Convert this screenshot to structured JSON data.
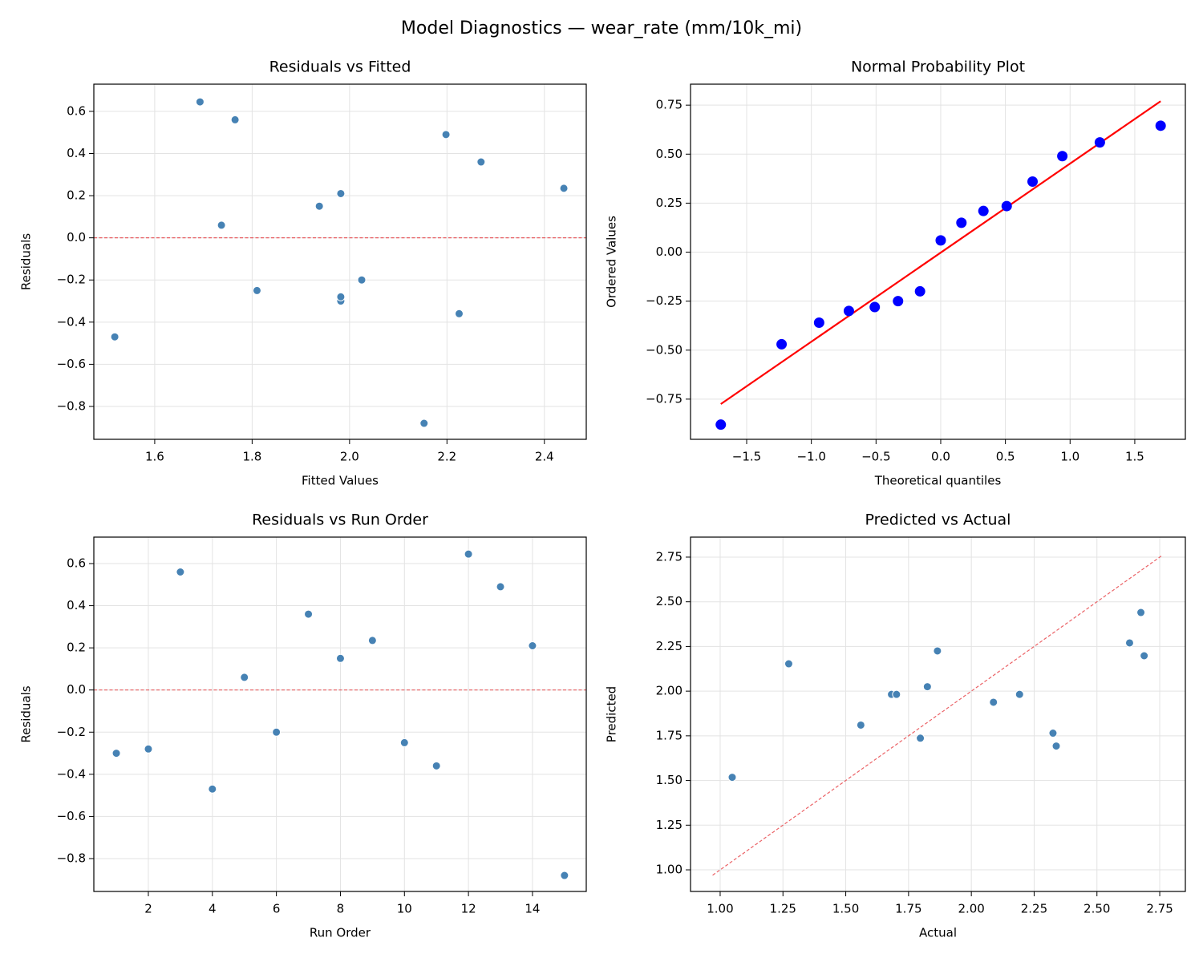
{
  "title": "Model Diagnostics — wear_rate (mm/10k_mi)",
  "chart_data": [
    {
      "type": "scatter",
      "title": "Residuals vs Fitted",
      "x_label": "Fitted Values",
      "y_label": "Residuals",
      "x": [
        1.982,
        1.982,
        1.765,
        1.518,
        1.737,
        2.025,
        2.27,
        1.938,
        2.44,
        1.81,
        2.225,
        1.693,
        2.198,
        1.982,
        2.153
      ],
      "values": [
        -0.3,
        -0.28,
        0.56,
        -0.47,
        0.06,
        -0.2,
        0.36,
        0.15,
        0.235,
        -0.25,
        -0.36,
        0.645,
        0.49,
        0.21,
        -0.88
      ],
      "color": "#4682b4",
      "grid": true,
      "hline": {
        "y": 0,
        "color": "#e8474b",
        "dashed": true
      },
      "xlim": [
        1.475,
        2.486
      ],
      "ylim": [
        -0.956,
        0.729
      ],
      "xticks": [
        1.6,
        1.8,
        {
          "value": 2,
          "label": "2.0"
        },
        2.2,
        2.4
      ],
      "yticks": [
        {
          "value": -0.8,
          "label": "−0.8"
        },
        {
          "value": -0.6,
          "label": "−0.6"
        },
        {
          "value": -0.4,
          "label": "−0.4"
        },
        {
          "value": -0.2,
          "label": "−0.2"
        },
        {
          "value": 0,
          "label": "0.0"
        },
        0.2,
        0.4,
        0.6
      ]
    },
    {
      "type": "scatter",
      "title": "Normal Probability Plot",
      "x_label": "Theoretical quantiles",
      "y_label": "Ordered Values",
      "x": [
        -1.7,
        -1.23,
        -0.94,
        -0.71,
        -0.51,
        -0.33,
        -0.16,
        0,
        0.16,
        0.33,
        0.51,
        0.71,
        0.94,
        1.23,
        1.7
      ],
      "values": [
        -0.88,
        -0.47,
        -0.36,
        -0.3,
        -0.28,
        -0.25,
        -0.2,
        0.06,
        0.15,
        0.21,
        0.235,
        0.36,
        0.49,
        0.56,
        0.645
      ],
      "color": "#0000ff",
      "grid": true,
      "line": {
        "x": [
          -1.7,
          1.7
        ],
        "values": [
          -0.775,
          0.77
        ],
        "color": "#ff0000",
        "dashed": false
      },
      "xlim": [
        -1.934,
        1.891
      ],
      "ylim": [
        -0.955,
        0.857
      ],
      "xticks": [
        {
          "value": -1.5,
          "label": "−1.5"
        },
        {
          "value": -1,
          "label": "−1.0"
        },
        {
          "value": -0.5,
          "label": "−0.5"
        },
        {
          "value": 0,
          "label": "0.0"
        },
        0.5,
        {
          "value": 1,
          "label": "1.0"
        },
        1.5
      ],
      "yticks": [
        {
          "value": -0.75,
          "label": "−0.75"
        },
        {
          "value": -0.5,
          "label": "−0.50"
        },
        {
          "value": -0.25,
          "label": "−0.25"
        },
        {
          "value": 0,
          "label": "0.00"
        },
        0.25,
        {
          "value": 0.5,
          "label": "0.50"
        },
        0.75
      ]
    },
    {
      "type": "scatter",
      "title": "Residuals vs Run Order",
      "x_label": "Run Order",
      "y_label": "Residuals",
      "x": [
        1,
        2,
        3,
        4,
        5,
        6,
        7,
        8,
        9,
        10,
        11,
        12,
        13,
        14,
        15
      ],
      "values": [
        -0.3,
        -0.28,
        0.56,
        -0.47,
        0.06,
        -0.2,
        0.36,
        0.15,
        0.235,
        -0.25,
        -0.36,
        0.645,
        0.49,
        0.21,
        -0.88
      ],
      "color": "#4682b4",
      "grid": true,
      "hline": {
        "y": 0,
        "color": "#e8474b",
        "dashed": true
      },
      "xlim": [
        0.297,
        15.68
      ],
      "ylim": [
        -0.956,
        0.7255
      ],
      "xticks": [
        2,
        4,
        6,
        8,
        10,
        12,
        14
      ],
      "yticks": [
        {
          "value": -0.8,
          "label": "−0.8"
        },
        {
          "value": -0.6,
          "label": "−0.6"
        },
        {
          "value": -0.4,
          "label": "−0.4"
        },
        {
          "value": -0.2,
          "label": "−0.2"
        },
        {
          "value": 0,
          "label": "0.0"
        },
        0.2,
        0.4,
        0.6
      ]
    },
    {
      "type": "scatter",
      "title": "Predicted vs Actual",
      "x_label": "Actual",
      "y_label": "Predicted",
      "x": [
        1.682,
        1.702,
        2.325,
        1.048,
        1.797,
        1.825,
        2.63,
        2.088,
        2.675,
        1.56,
        1.865,
        2.338,
        2.688,
        2.192,
        1.273
      ],
      "values": [
        1.982,
        1.982,
        1.765,
        1.518,
        1.737,
        2.025,
        2.27,
        1.938,
        2.44,
        1.81,
        2.225,
        1.693,
        2.198,
        1.982,
        2.153
      ],
      "color": "#4682b4",
      "grid": true,
      "line": {
        "x": [
          0.97,
          2.76
        ],
        "values": [
          0.97,
          2.76
        ],
        "color": "#e8474b",
        "dashed": true
      },
      "xlim": [
        0.882,
        2.852
      ],
      "ylim": [
        0.879,
        2.862
      ],
      "xticks": [
        {
          "value": 1,
          "label": "1.00"
        },
        1.25,
        {
          "value": 1.5,
          "label": "1.50"
        },
        1.75,
        {
          "value": 2,
          "label": "2.00"
        },
        2.25,
        {
          "value": 2.5,
          "label": "2.50"
        },
        2.75
      ],
      "yticks": [
        {
          "value": 1,
          "label": "1.00"
        },
        1.25,
        {
          "value": 1.5,
          "label": "1.50"
        },
        1.75,
        {
          "value": 2,
          "label": "2.00"
        },
        2.25,
        {
          "value": 2.5,
          "label": "2.50"
        },
        2.75
      ]
    }
  ]
}
